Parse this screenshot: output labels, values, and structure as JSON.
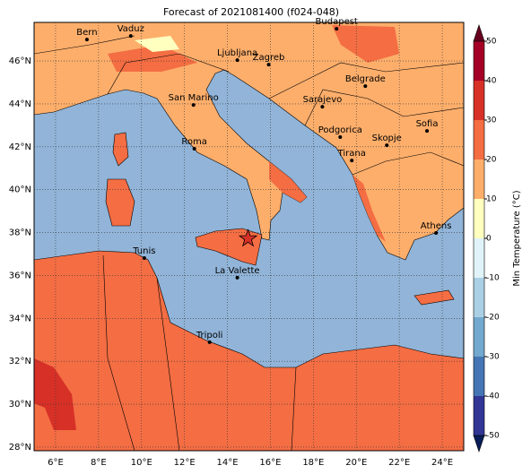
{
  "title": "Forecast of 2021081400 (f024-048)",
  "map": {
    "lon_range": [
      5,
      25
    ],
    "lat_range": [
      27.83,
      47.8
    ],
    "lon_ticks": [
      {
        "value": 6,
        "label": "6°E"
      },
      {
        "value": 8,
        "label": "8°E"
      },
      {
        "value": 10,
        "label": "10°E"
      },
      {
        "value": 12,
        "label": "12°E"
      },
      {
        "value": 14,
        "label": "14°E"
      },
      {
        "value": 16,
        "label": "16°E"
      },
      {
        "value": 18,
        "label": "18°E"
      },
      {
        "value": 20,
        "label": "20°E"
      },
      {
        "value": 22,
        "label": "22°E"
      },
      {
        "value": 24,
        "label": "24°E"
      }
    ],
    "lat_ticks": [
      {
        "value": 28,
        "label": "28°N"
      },
      {
        "value": 30,
        "label": "30°N"
      },
      {
        "value": 32,
        "label": "32°N"
      },
      {
        "value": 34,
        "label": "34°N"
      },
      {
        "value": 36,
        "label": "36°N"
      },
      {
        "value": 38,
        "label": "38°N"
      },
      {
        "value": 40,
        "label": "40°N"
      },
      {
        "value": 42,
        "label": "42°N"
      },
      {
        "value": 44,
        "label": "44°N"
      },
      {
        "value": 46,
        "label": "46°N"
      }
    ],
    "cities": [
      {
        "name": "Bern",
        "lon": 7.46,
        "lat": 47.0
      },
      {
        "name": "Vaduz",
        "lon": 9.5,
        "lat": 47.17
      },
      {
        "name": "Budapest",
        "lon": 19.08,
        "lat": 47.5
      },
      {
        "name": "Ljubljana",
        "lon": 14.46,
        "lat": 46.04
      },
      {
        "name": "Zagreb",
        "lon": 15.92,
        "lat": 45.83
      },
      {
        "name": "Belgrade",
        "lon": 20.42,
        "lat": 44.83
      },
      {
        "name": "San Marino",
        "lon": 12.42,
        "lat": 43.95
      },
      {
        "name": "Sarajevo",
        "lon": 18.42,
        "lat": 43.87
      },
      {
        "name": "Sofia",
        "lon": 23.29,
        "lat": 42.74
      },
      {
        "name": "Podgorica",
        "lon": 19.25,
        "lat": 42.45
      },
      {
        "name": "Skopje",
        "lon": 21.42,
        "lat": 42.07
      },
      {
        "name": "Roma",
        "lon": 12.46,
        "lat": 41.91
      },
      {
        "name": "Tirana",
        "lon": 19.79,
        "lat": 41.36
      },
      {
        "name": "Athens",
        "lon": 23.71,
        "lat": 37.98
      },
      {
        "name": "Tunis",
        "lon": 10.13,
        "lat": 36.81
      },
      {
        "name": "La Valette",
        "lon": 14.46,
        "lat": 35.9
      },
      {
        "name": "Tripoli",
        "lon": 13.17,
        "lat": 32.89
      }
    ],
    "marker": {
      "lon": 14.96,
      "lat": 37.72
    }
  },
  "colorbar": {
    "label": "Min Temperature (°C)",
    "range": [
      -50,
      50
    ],
    "ticks": [
      -50,
      -40,
      -30,
      -20,
      -10,
      0,
      10,
      20,
      30,
      40,
      50
    ],
    "colors": [
      "#313695",
      "#4575b4",
      "#74a9cf",
      "#abd0e6",
      "#e0f3f8",
      "#ffffbf",
      "#fdae6b",
      "#f46d43",
      "#d73027",
      "#a50026"
    ]
  }
}
